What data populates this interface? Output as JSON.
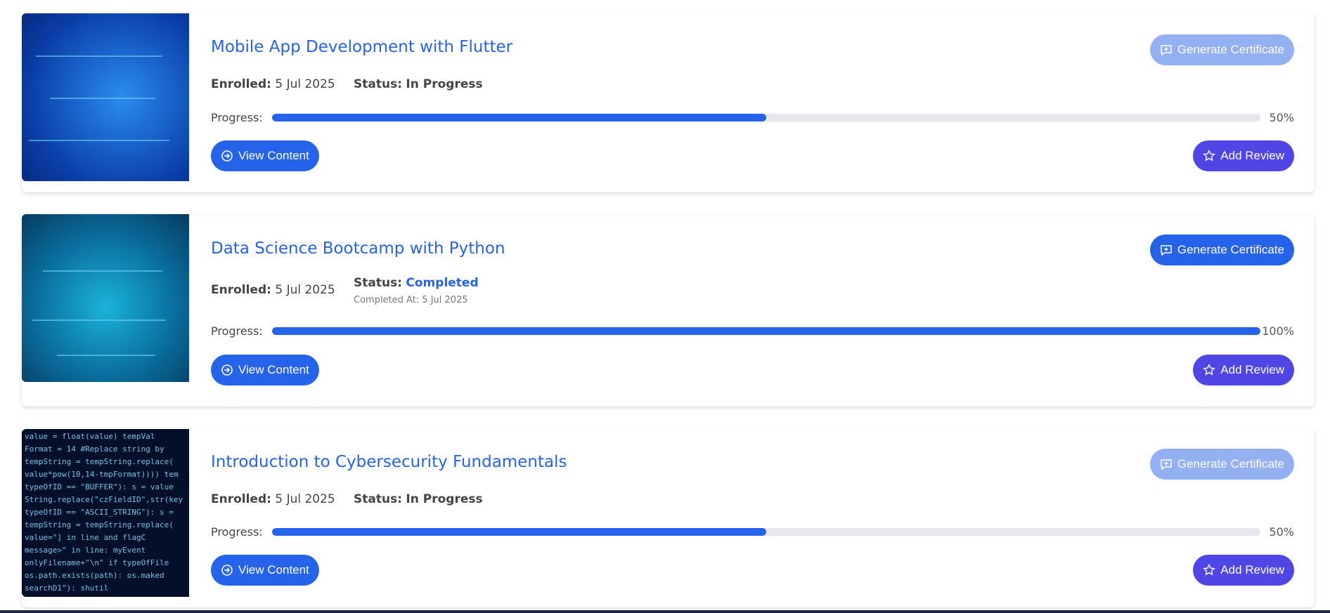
{
  "courses": [
    {
      "title": "Mobile App Development with Flutter",
      "enrolled_label": "Enrolled:",
      "enrolled": "5 Jul 2025",
      "status_label": "Status:",
      "status": "In Progress",
      "progress_label": "Progress:",
      "progress": 50,
      "progress_text": "50%",
      "view_label": "View Content",
      "review_label": "Add Review",
      "certificate_label": "Generate Certificate",
      "certificate_enabled": false
    },
    {
      "title": "Data Science Bootcamp with Python",
      "enrolled_label": "Enrolled:",
      "enrolled": "5 Jul 2025",
      "status_label": "Status:",
      "status": "Completed",
      "completed_at": "Completed At: 5 Jul 2025",
      "progress_label": "Progress:",
      "progress": 100,
      "progress_text": "100%",
      "view_label": "View Content",
      "review_label": "Add Review",
      "certificate_label": "Generate Certificate",
      "certificate_enabled": true
    },
    {
      "title": "Introduction to Cybersecurity Fundamentals",
      "enrolled_label": "Enrolled:",
      "enrolled": "5 Jul 2025",
      "status_label": "Status:",
      "status": "In Progress",
      "progress_label": "Progress:",
      "progress": 50,
      "progress_text": "50%",
      "view_label": "View Content",
      "review_label": "Add Review",
      "certificate_label": "Generate Certificate",
      "certificate_enabled": false
    }
  ],
  "colors": {
    "primary": "#2563eb",
    "review": "#4f46e5",
    "disabled": "#93b0f3",
    "track": "#e5e7eb"
  }
}
